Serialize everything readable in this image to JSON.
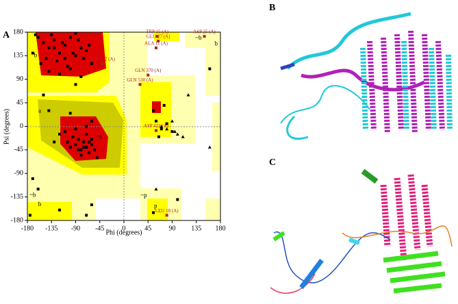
{
  "panel_labels": [
    "A",
    "B",
    "C"
  ],
  "chart_data": {
    "type": "scatter",
    "xlabel": "Phi (degrees)",
    "ylabel": "Psi (degrees)",
    "xlim": [
      -180,
      180
    ],
    "ylim": [
      -180,
      180
    ],
    "xticks": [
      -180,
      -135,
      -90,
      -45,
      0,
      45,
      90,
      135,
      180
    ],
    "yticks": [
      -180,
      -135,
      -90,
      -45,
      0,
      45,
      90,
      135,
      180
    ],
    "series": [
      {
        "marker": "square",
        "color": "#000000",
        "x": [
          -160,
          -150,
          -140,
          -130,
          -120,
          -110,
          -100,
          -90,
          -80,
          -70,
          -155,
          -145,
          -135,
          -125,
          -115,
          -105,
          -95,
          -85,
          -75,
          -65,
          -140,
          -120,
          -100,
          -80,
          -60,
          -170,
          -165,
          -130,
          -110,
          -90,
          -100,
          -90,
          -80,
          -70,
          -60,
          -95,
          -85,
          -75,
          -65,
          -55,
          -110,
          -90,
          -70,
          -60,
          -80,
          -75,
          -65,
          -85,
          -105,
          -120,
          -70,
          -60,
          -50,
          -130,
          -150,
          -160,
          -60,
          -120,
          -175,
          -140,
          -90,
          -70,
          60,
          70,
          80,
          90,
          55,
          65,
          75,
          -170,
          100,
          160,
          55,
          -100
        ],
        "values": [
          170,
          160,
          150,
          165,
          140,
          155,
          170,
          135,
          150,
          145,
          120,
          130,
          175,
          125,
          160,
          115,
          140,
          165,
          130,
          155,
          105,
          100,
          110,
          95,
          120,
          140,
          175,
          150,
          130,
          178,
          -40,
          -35,
          -45,
          -40,
          -35,
          -20,
          -25,
          -30,
          -50,
          -45,
          -10,
          -5,
          -15,
          -25,
          -55,
          -40,
          -30,
          -45,
          -30,
          -15,
          0,
          10,
          -60,
          -30,
          60,
          -120,
          -150,
          -160,
          -170,
          30,
          80,
          -170,
          10,
          -5,
          5,
          -10,
          30,
          -20,
          40,
          -100,
          -140,
          110,
          -165,
          25
        ]
      },
      {
        "marker": "triangle",
        "color": "#000000",
        "x": [
          80,
          95,
          110,
          70,
          90,
          100,
          60,
          120,
          160
        ],
        "values": [
          -5,
          -10,
          -20,
          0,
          10,
          -15,
          -120,
          60,
          -40
        ]
      }
    ],
    "annotations": [
      {
        "text": "TRP 15 (A)",
        "x": 62,
        "y": 172
      },
      {
        "text": "GLU 27 (A)",
        "x": 64,
        "y": 163
      },
      {
        "text": "ALA 11 (A)",
        "x": 60,
        "y": 150
      },
      {
        "text": "ASP 25 (A)",
        "x": 150,
        "y": 172
      },
      {
        "text": "SER 132 (A)",
        "x": -40,
        "y": 120
      },
      {
        "text": "GLN 370 (A)",
        "x": 45,
        "y": 98
      },
      {
        "text": "GLN 530 (A)",
        "x": 30,
        "y": 80
      },
      {
        "text": "ASP 422 (A)",
        "x": 60,
        "y": -8
      },
      {
        "text": "LEU 18 (A)",
        "x": 80,
        "y": -170
      }
    ],
    "region_labels": [
      {
        "text": "b",
        "x": -165,
        "y": 135
      },
      {
        "text": "a",
        "x": -157,
        "y": 29
      },
      {
        "text": "~a",
        "x": -46,
        "y": -20
      },
      {
        "text": "~b",
        "x": -170,
        "y": -132
      },
      {
        "text": "b",
        "x": -157,
        "y": -150
      },
      {
        "text": "~b",
        "x": 139,
        "y": 168
      },
      {
        "text": "b",
        "x": 172,
        "y": 157
      },
      {
        "text": "~p",
        "x": 37,
        "y": -133
      },
      {
        "text": "p",
        "x": 59,
        "y": -153
      }
    ]
  }
}
